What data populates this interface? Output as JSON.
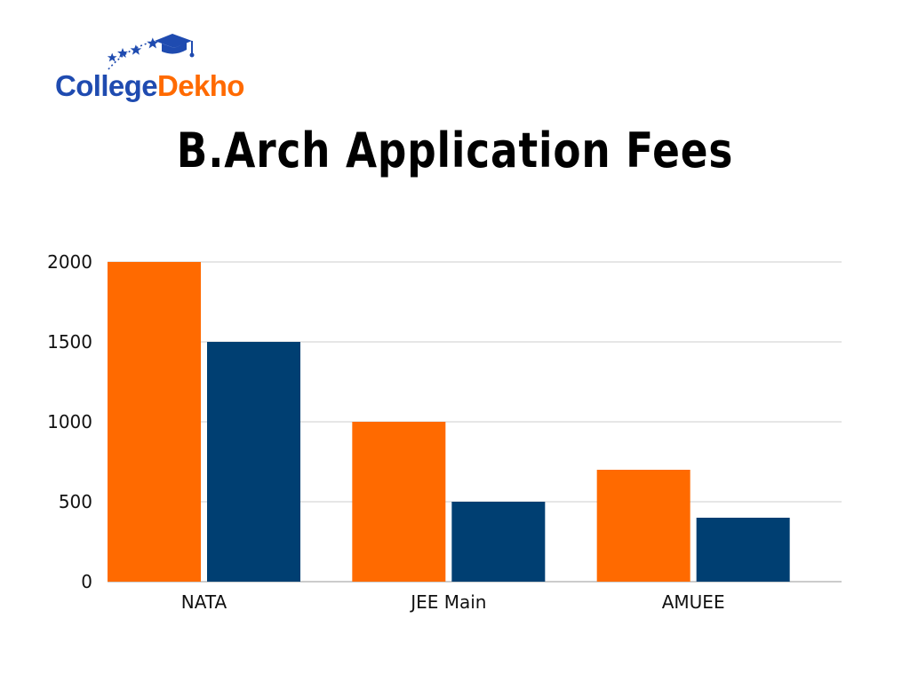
{
  "logo": {
    "part1": "College",
    "part2": "Dekho"
  },
  "colors": {
    "series_primary": "#FF6A00",
    "series_secondary": "#003F72",
    "grid": "#CCCCCC",
    "brand_blue": "#1F4BB0"
  },
  "chart_data": {
    "type": "bar",
    "title": "B.Arch Application Fees",
    "categories": [
      "NATA",
      "JEE Main",
      "AMUEE"
    ],
    "series": [
      {
        "values": [
          2000,
          1000,
          700
        ],
        "color": "#FF6A00"
      },
      {
        "values": [
          1500,
          500,
          400
        ],
        "color": "#003F72"
      }
    ],
    "yticks": [
      0,
      500,
      1000,
      1500,
      2000
    ],
    "ylim": [
      0,
      2000
    ],
    "grid": true,
    "legend": "none"
  }
}
